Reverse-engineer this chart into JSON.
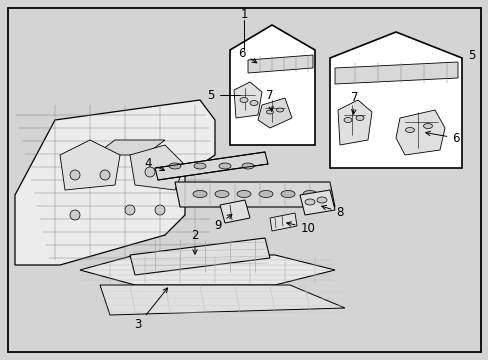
{
  "bg_color": "#d4d4d4",
  "border_color": "#000000",
  "line_color": "#000000",
  "fig_width": 4.89,
  "fig_height": 3.6,
  "dpi": 100
}
